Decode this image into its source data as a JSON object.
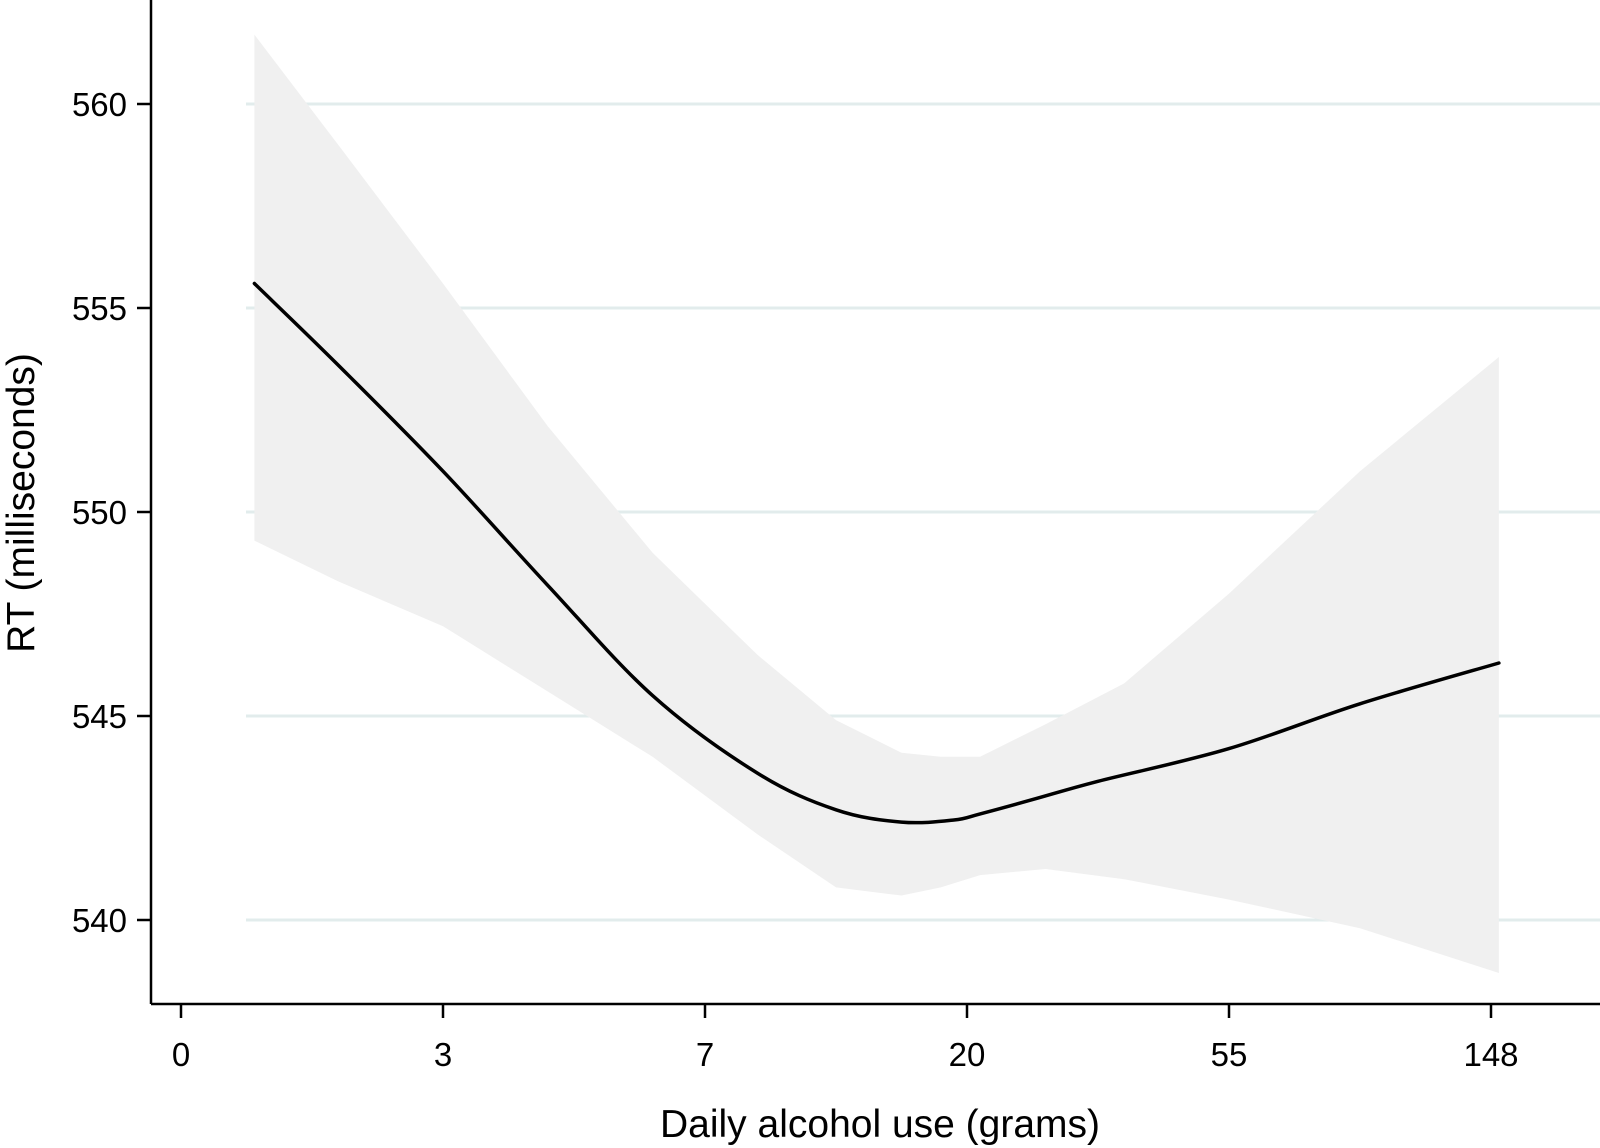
{
  "chart_data": {
    "type": "line",
    "title": "",
    "xlabel": "Daily alcohol use (grams)",
    "ylabel": "RT (milliseconds)",
    "x_ticks": [
      {
        "label": "0",
        "index": 0
      },
      {
        "label": "3",
        "index": 1
      },
      {
        "label": "7",
        "index": 2
      },
      {
        "label": "20",
        "index": 3
      },
      {
        "label": "55",
        "index": 4
      },
      {
        "label": "148",
        "index": 5
      }
    ],
    "x_scale_note": "x positions given on the categorical tick index scale (0=0 g, 1=3 g, 2=7 g, 3=20 g, 4=55 g, 5=148 g)",
    "xlim": [
      0,
      5.3
    ],
    "ylim": [
      538,
      562
    ],
    "y_ticks": [
      540,
      545,
      550,
      555,
      560
    ],
    "grid": "horizontal",
    "colors": {
      "line": "#000000",
      "band": "#f0f0f0",
      "grid": "#e2ecec",
      "axis": "#000000"
    },
    "series": [
      {
        "name": "Estimated RT",
        "kind": "line",
        "x": [
          0.28,
          0.6,
          1.0,
          1.4,
          1.8,
          2.2,
          2.5,
          2.75,
          2.95,
          3.05,
          3.25,
          3.5,
          4.0,
          4.5,
          5.03
        ],
        "y": [
          555.6,
          553.6,
          551.0,
          548.2,
          545.5,
          543.6,
          542.7,
          542.4,
          542.45,
          542.6,
          542.95,
          543.4,
          544.2,
          545.3,
          546.3
        ]
      },
      {
        "name": "95% confidence interval",
        "kind": "band",
        "x": [
          0.28,
          0.6,
          1.0,
          1.4,
          1.8,
          2.2,
          2.5,
          2.75,
          2.9,
          3.05,
          3.3,
          3.6,
          4.0,
          4.5,
          5.03
        ],
        "upper": [
          561.7,
          559.0,
          555.6,
          552.1,
          549.0,
          546.5,
          544.9,
          544.1,
          544.0,
          544.0,
          544.8,
          545.8,
          548.0,
          551.0,
          553.8
        ],
        "lower": [
          549.3,
          548.3,
          547.2,
          545.6,
          544.0,
          542.1,
          540.8,
          540.6,
          540.8,
          541.1,
          541.25,
          541.0,
          540.5,
          539.8,
          538.7
        ]
      }
    ]
  }
}
